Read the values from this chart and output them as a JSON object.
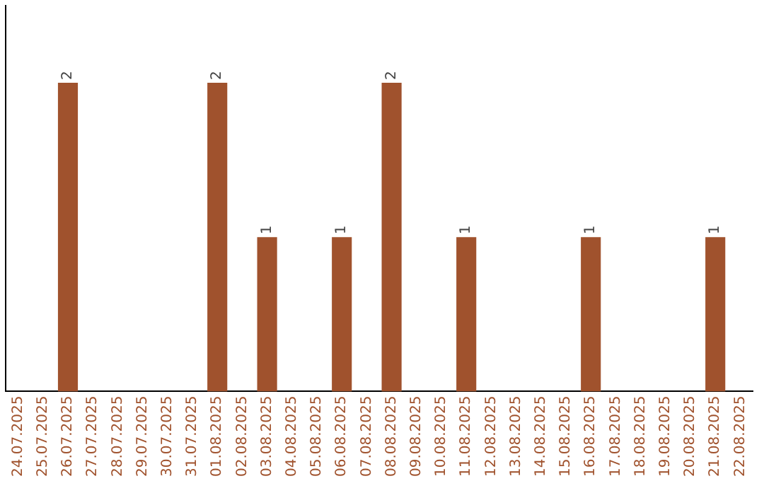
{
  "chart_data": {
    "type": "bar",
    "categories": [
      "24.07.2025",
      "25.07.2025",
      "26.07.2025",
      "27.07.2025",
      "28.07.2025",
      "29.07.2025",
      "30.07.2025",
      "31.07.2025",
      "01.08.2025",
      "02.08.2025",
      "03.08.2025",
      "04.08.2025",
      "05.08.2025",
      "06.08.2025",
      "07.08.2025",
      "08.08.2025",
      "09.08.2025",
      "10.08.2025",
      "11.08.2025",
      "12.08.2025",
      "13.08.2025",
      "14.08.2025",
      "15.08.2025",
      "16.08.2025",
      "17.08.2025",
      "18.08.2025",
      "19.08.2025",
      "20.08.2025",
      "21.08.2025",
      "22.08.2025"
    ],
    "values": [
      0,
      0,
      2,
      0,
      0,
      0,
      0,
      0,
      2,
      0,
      1,
      0,
      0,
      1,
      0,
      2,
      0,
      0,
      1,
      0,
      0,
      0,
      0,
      1,
      0,
      0,
      0,
      0,
      1,
      0
    ],
    "color": "#a0522d",
    "value_labels": [
      null,
      null,
      "2",
      null,
      null,
      null,
      null,
      null,
      "2",
      null,
      "1",
      null,
      null,
      "1",
      null,
      "2",
      null,
      null,
      "1",
      null,
      null,
      null,
      null,
      "1",
      null,
      null,
      null,
      null,
      "1",
      null
    ],
    "tick_labels": "x",
    "grid": false,
    "legend": false
  }
}
